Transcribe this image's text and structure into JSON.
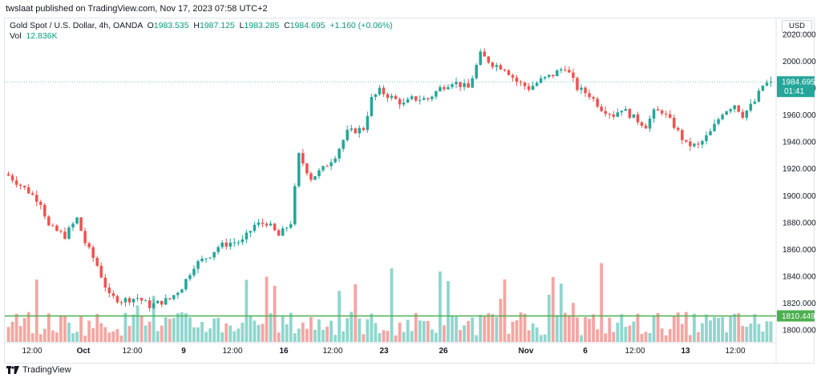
{
  "header": {
    "published_by": "twslaat published on TradingView.com, Nov 17, 2023 07:58 UTC+2"
  },
  "legend": {
    "symbol": "Gold Spot / U.S. Dollar, 4h, OANDA",
    "open_label": "O",
    "open": "1983.535",
    "high_label": "H",
    "high": "1987.125",
    "low_label": "L",
    "low": "1983.285",
    "close_label": "C",
    "close": "1984.695",
    "change": "+1.160 (+0.06%)",
    "vol_label": "Vol",
    "vol_value": "12.836K"
  },
  "currency": "USD",
  "footer": {
    "brand": "TradingView"
  },
  "colors": {
    "up": "#26a69a",
    "down": "#ef5350",
    "up_vol": "#90d6ce",
    "down_vol": "#f4a6a3",
    "support_line": "#4caf50",
    "current_price": "#26a69a"
  },
  "chart_data": {
    "type": "candlestick",
    "title": "Gold Spot / U.S. Dollar, 4h, OANDA",
    "x_tick_labels": [
      "12:00",
      "Oct",
      "12:00",
      "9",
      "12:00",
      "16",
      "12:00",
      "23",
      "26",
      "Nov",
      "6",
      "12:00",
      "13",
      "12:00"
    ],
    "y_tick_labels": [
      "2020.000",
      "2000.000",
      "1980.000",
      "1960.000",
      "1940.000",
      "1920.000",
      "1900.000",
      "1880.000",
      "1860.000",
      "1840.000",
      "1820.000",
      "1800.000"
    ],
    "ylim": [
      1794,
      2022
    ],
    "price_line": {
      "value": 1984.695,
      "label": "1984.695",
      "countdown": "01:41"
    },
    "horizontal_line": {
      "value": 1810.449,
      "label": "1810.449"
    },
    "close_path_keypoints": [
      [
        0,
        1915
      ],
      [
        5,
        1903
      ],
      [
        8,
        1895
      ],
      [
        10,
        1877
      ],
      [
        14,
        1870
      ],
      [
        17,
        1883
      ],
      [
        19,
        1865
      ],
      [
        22,
        1848
      ],
      [
        25,
        1825
      ],
      [
        28,
        1822
      ],
      [
        32,
        1824
      ],
      [
        35,
        1818
      ],
      [
        37,
        1820
      ],
      [
        40,
        1823
      ],
      [
        43,
        1832
      ],
      [
        46,
        1848
      ],
      [
        50,
        1856
      ],
      [
        52,
        1862
      ],
      [
        55,
        1865
      ],
      [
        58,
        1866
      ],
      [
        61,
        1878
      ],
      [
        64,
        1880
      ],
      [
        67,
        1870
      ],
      [
        70,
        1880
      ],
      [
        72,
        1930
      ],
      [
        75,
        1913
      ],
      [
        78,
        1920
      ],
      [
        81,
        1930
      ],
      [
        84,
        1947
      ],
      [
        88,
        1950
      ],
      [
        90,
        1972
      ],
      [
        92,
        1978
      ],
      [
        95,
        1973
      ],
      [
        98,
        1968
      ],
      [
        100,
        1972
      ],
      [
        104,
        1972
      ],
      [
        107,
        1980
      ],
      [
        110,
        1985
      ],
      [
        114,
        1980
      ],
      [
        117,
        2005
      ],
      [
        120,
        1998
      ],
      [
        123,
        1995
      ],
      [
        126,
        1985
      ],
      [
        129,
        1980
      ],
      [
        132,
        1986
      ],
      [
        135,
        1990
      ],
      [
        138,
        1996
      ],
      [
        141,
        1980
      ],
      [
        144,
        1975
      ],
      [
        147,
        1965
      ],
      [
        150,
        1960
      ],
      [
        152,
        1965
      ],
      [
        155,
        1958
      ],
      [
        158,
        1952
      ],
      [
        160,
        1962
      ],
      [
        162,
        1963
      ],
      [
        165,
        1952
      ],
      [
        168,
        1938
      ],
      [
        171,
        1937
      ],
      [
        174,
        1947
      ],
      [
        177,
        1962
      ],
      [
        180,
        1968
      ],
      [
        182,
        1960
      ],
      [
        185,
        1970
      ],
      [
        187,
        1982
      ],
      [
        189,
        1984.7
      ]
    ],
    "candle_count": 190,
    "volume_pattern_note": ""
  }
}
